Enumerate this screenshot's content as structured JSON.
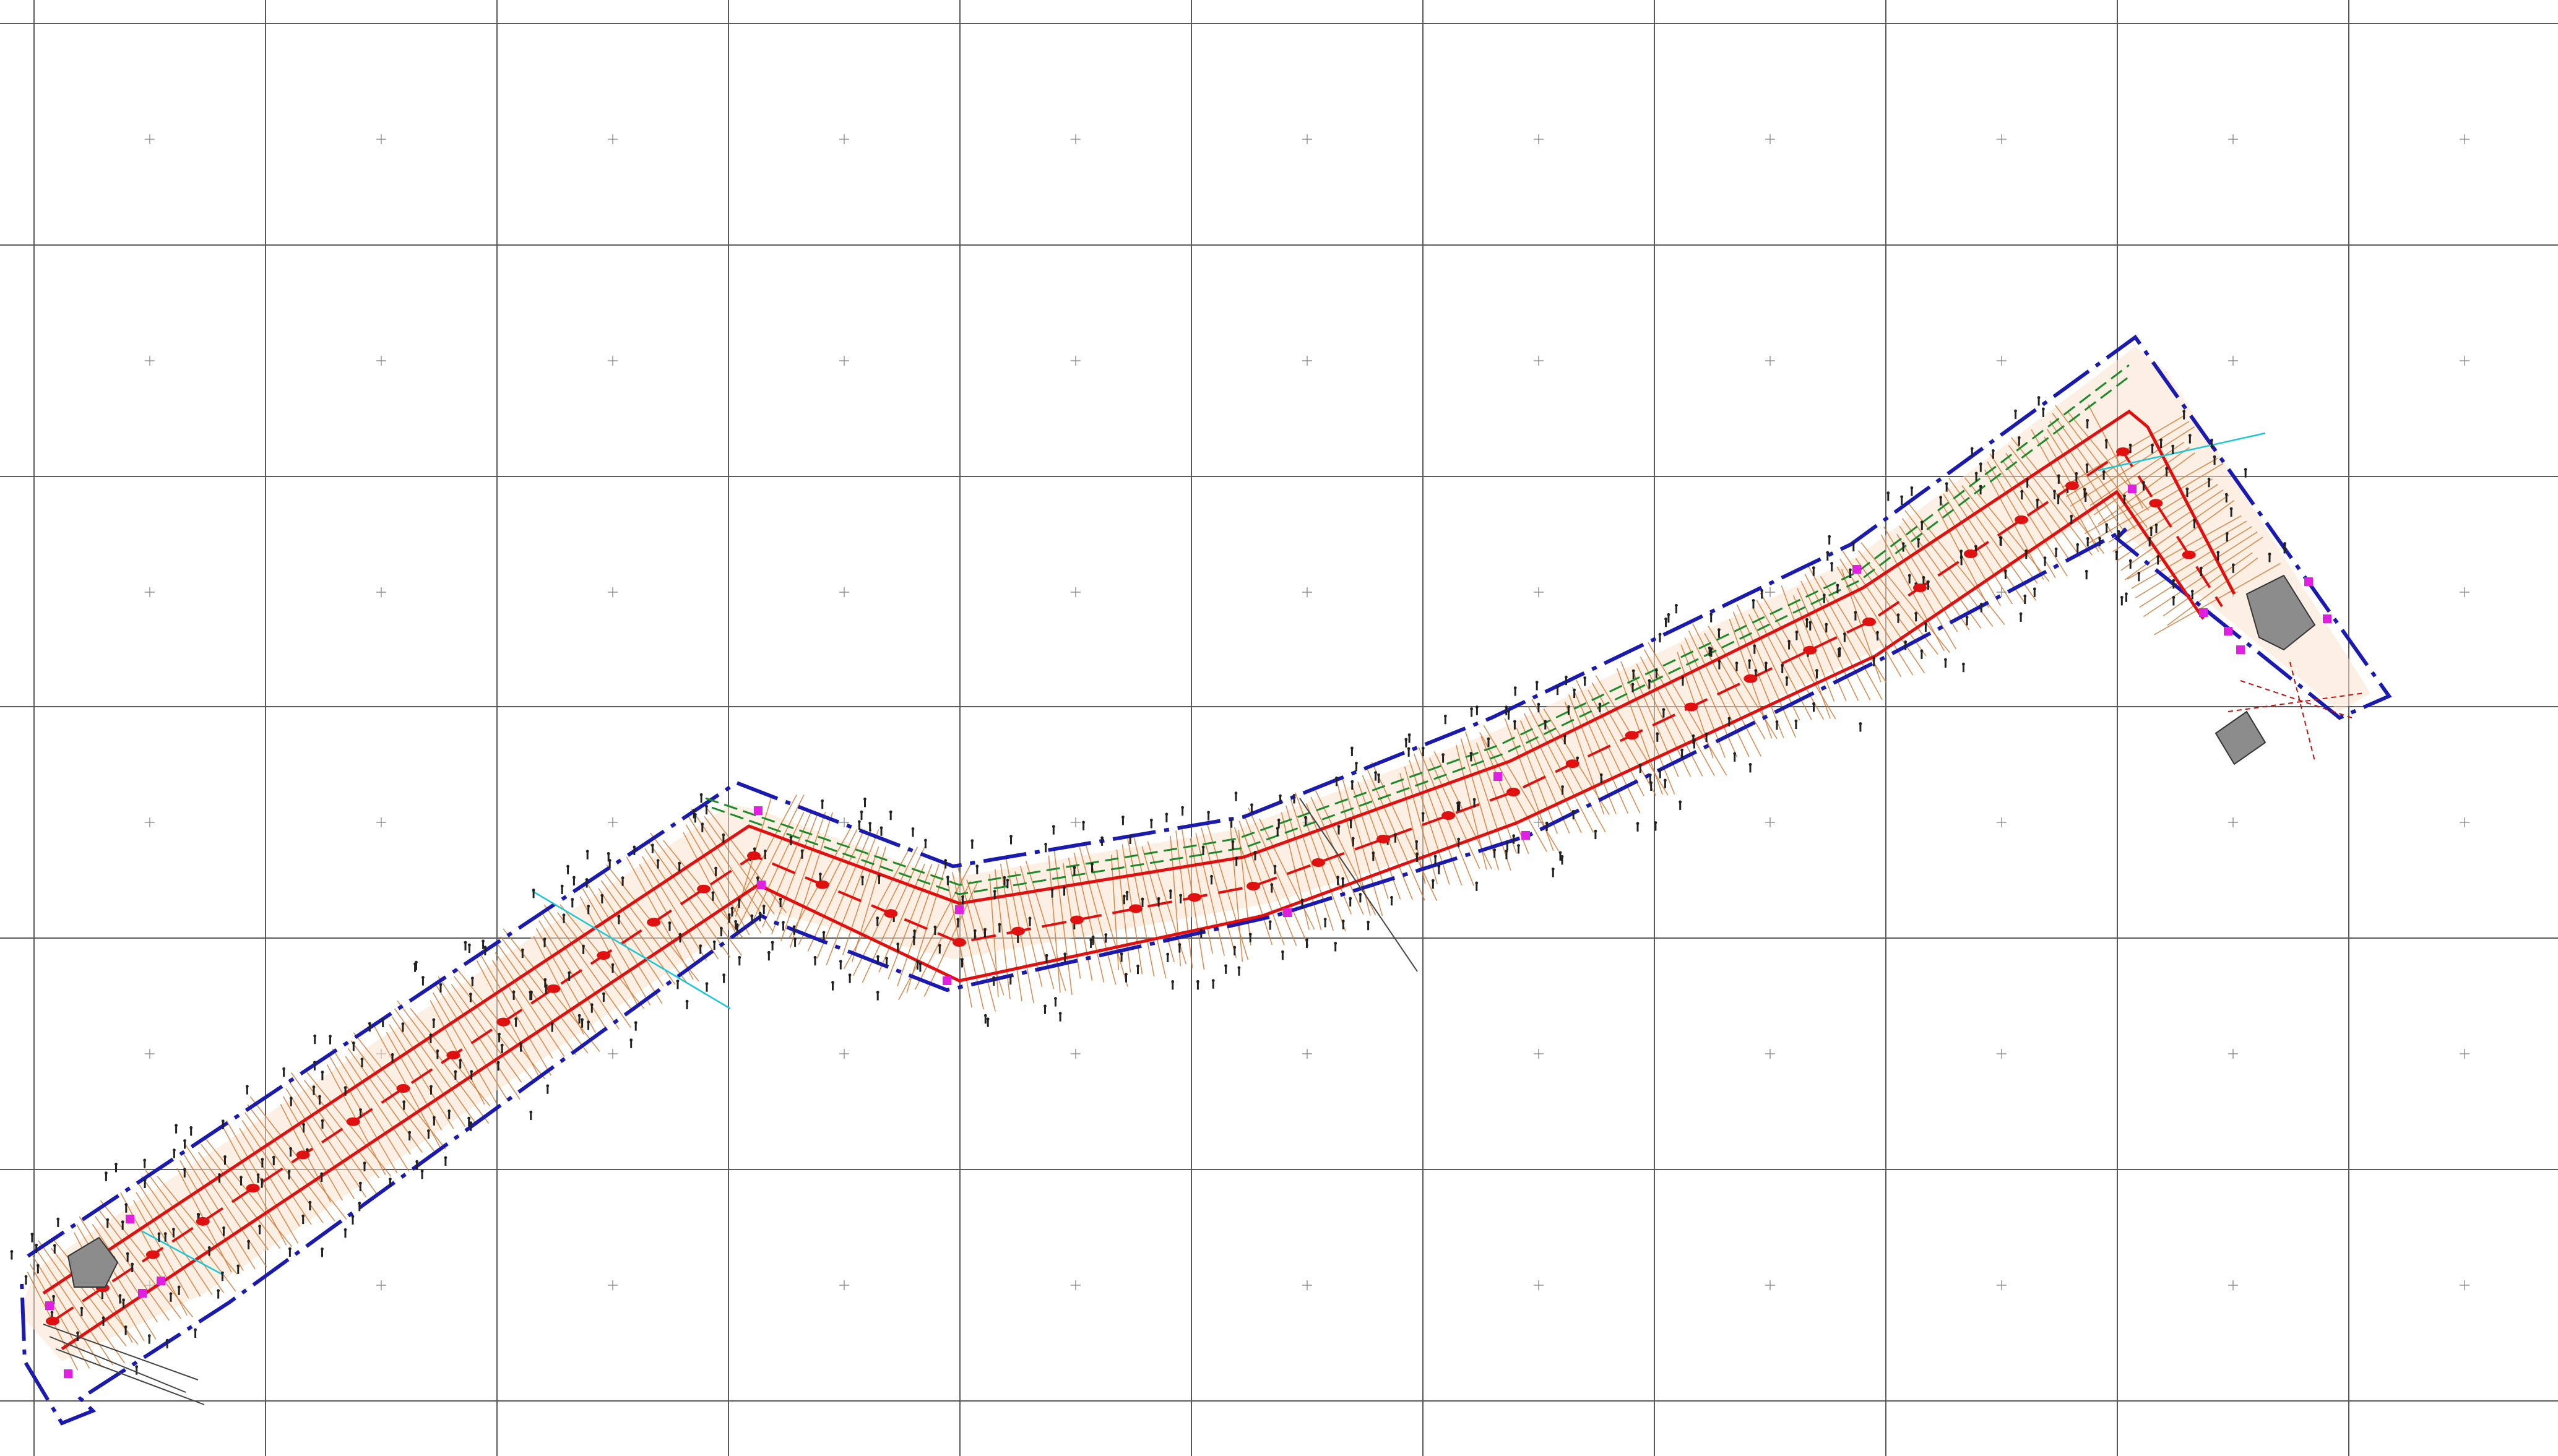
{
  "drawing": {
    "type": "site-plan-corridor",
    "background": "#ffffff",
    "colors": {
      "grid": "#5a5a5a",
      "boundary": "#1a1ab0",
      "corridor": "#e01010",
      "contours": "#d07a3a",
      "vegetation": "#222222",
      "markers": "#e020e0",
      "utility": "#1a8a2a",
      "section_lines": "#1ac8d8"
    },
    "icons": [
      "tree-symbol-icon",
      "station-marker-icon",
      "survey-point-icon",
      "building-icon"
    ]
  }
}
